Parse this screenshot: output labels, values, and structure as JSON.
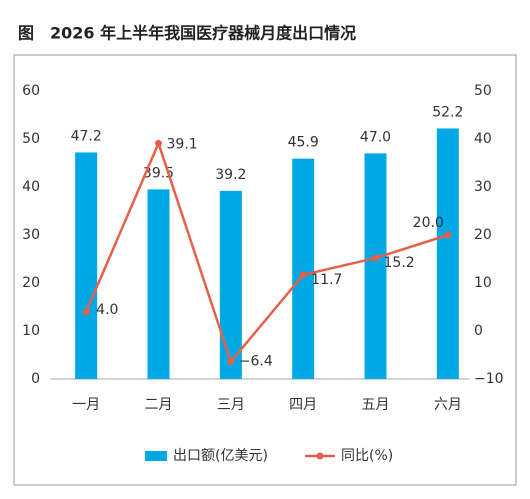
{
  "chart_data": {
    "type": "bar",
    "title": "图　2026 年上半年我国医疗器械月度出口情况",
    "categories": [
      "一月",
      "二月",
      "三月",
      "四月",
      "五月",
      "六月"
    ],
    "series": [
      {
        "name": "出口额(亿美元)",
        "type": "bar",
        "color": "#00a9e6",
        "values": [
          47.2,
          39.5,
          39.2,
          45.9,
          47.0,
          52.2
        ],
        "value_labels": [
          "47.2",
          "39.5",
          "39.2",
          "45.9",
          "47.0",
          "52.2"
        ]
      },
      {
        "name": "同比(%)",
        "type": "line",
        "axis": "y2",
        "color": "#e5604a",
        "values": [
          4.0,
          39.1,
          -6.4,
          11.7,
          15.2,
          20.0
        ],
        "value_labels": [
          "4.0",
          "39.1",
          "−6.4",
          "11.7",
          "15.2",
          "20.0"
        ]
      }
    ],
    "ylim": [
      0,
      60
    ],
    "yticks": [
      0,
      10,
      20,
      30,
      40,
      50,
      60
    ],
    "y2lim": [
      -10,
      50
    ],
    "y2ticks": [
      {
        "value": -10,
        "label": "−10"
      },
      0,
      10,
      20,
      30,
      40,
      50
    ],
    "grid": false,
    "legend": "bottom"
  }
}
